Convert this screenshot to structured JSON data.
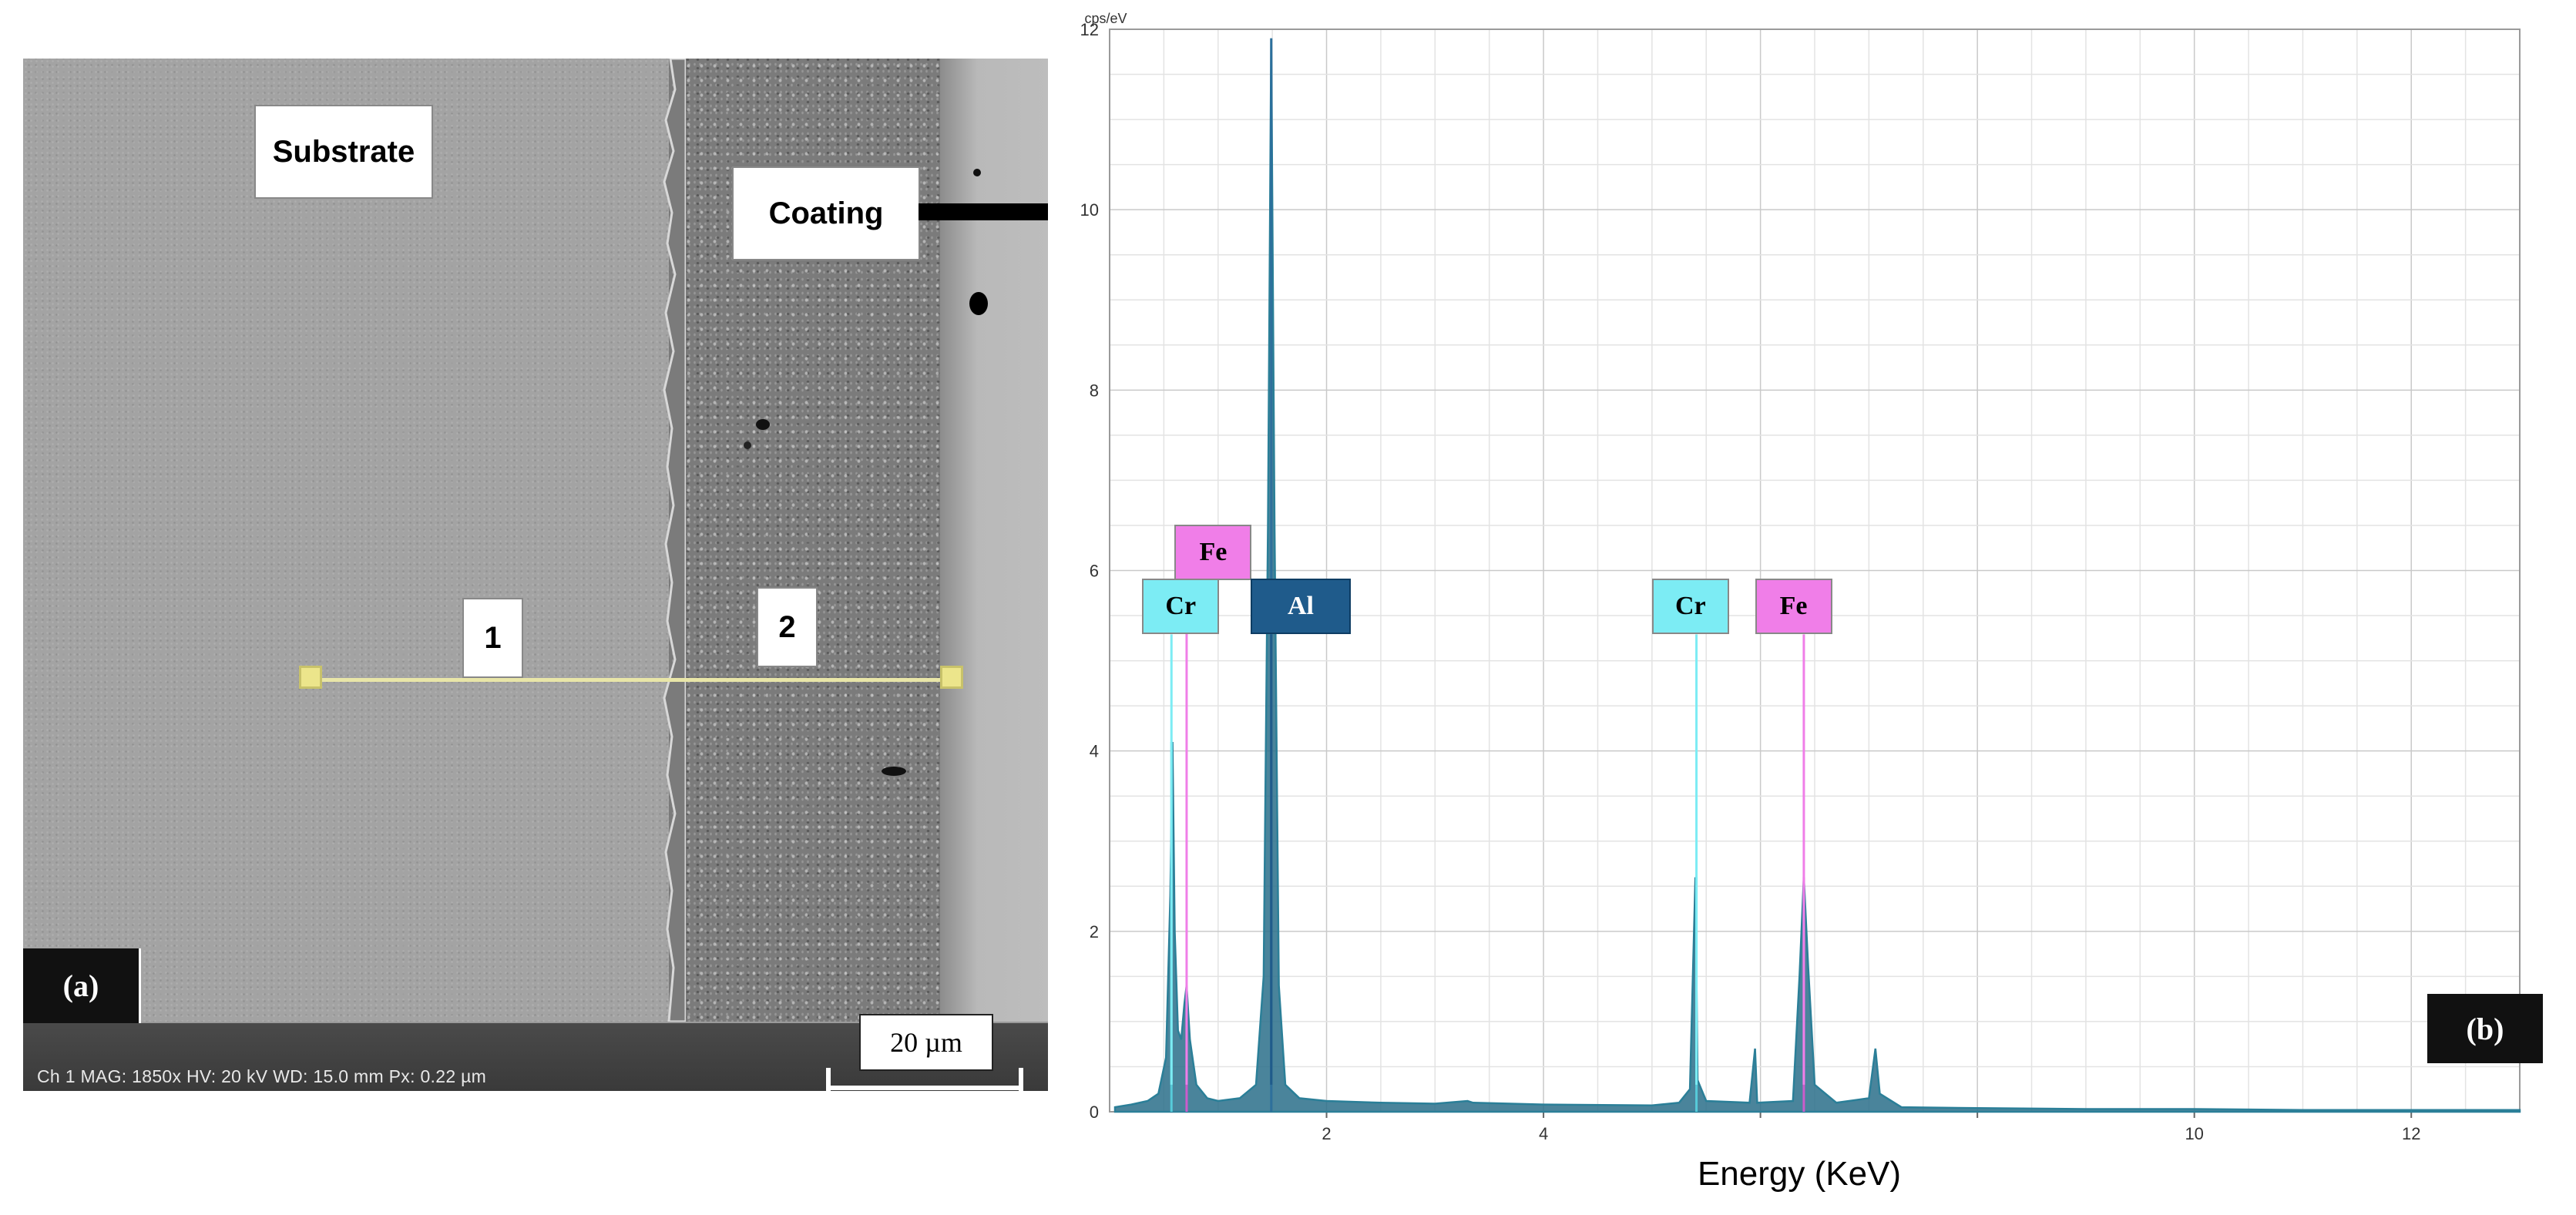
{
  "sem": {
    "substrate_label": "Substrate",
    "coating_label": "Coating",
    "point_1": "1",
    "point_2": "2",
    "panel_tag": "(a)",
    "scale_label": "20 µm",
    "info_bar": "Ch 1   MAG: 1850x   HV: 20 kV   WD: 15.0 mm   Px: 0.22 µm"
  },
  "chart_data": {
    "type": "line",
    "title": "",
    "unit_label": "cps/eV",
    "xlabel": "Energy (KeV)",
    "ylabel": "",
    "xlim": [
      0,
      13
    ],
    "ylim": [
      0,
      12
    ],
    "x_ticks": [
      2,
      4,
      6,
      8,
      10,
      12
    ],
    "x_tick_labels": [
      "2",
      "4",
      "",
      "",
      "10",
      "12"
    ],
    "y_ticks": [
      0,
      2,
      4,
      6,
      8,
      10,
      12
    ],
    "y_tick_labels": [
      "0",
      "2",
      "4",
      "6",
      "8",
      "10",
      "12"
    ],
    "grid": true,
    "panel_tag": "(b)",
    "peaks": [
      {
        "element": "Cr",
        "energy": 0.57,
        "height": 4.1,
        "color": "#58d3e0"
      },
      {
        "element": "Fe",
        "energy": 0.71,
        "height": 1.4,
        "color": "#d958d0"
      },
      {
        "element": "Al",
        "energy": 1.49,
        "height": 11.9,
        "color": "#2b6e9c"
      },
      {
        "element": "Cr",
        "energy": 5.41,
        "height": 2.6,
        "color": "#58d3e0"
      },
      {
        "element": "Fe",
        "energy": 6.4,
        "height": 2.6,
        "color": "#d958d0"
      }
    ],
    "peak_labels": [
      {
        "text": "Fe",
        "energy": 0.6,
        "y": 6.2,
        "line_to": 0.71,
        "bg": "#f07ee8",
        "fg": "#000000"
      },
      {
        "text": "Cr",
        "energy": 0.3,
        "y": 5.6,
        "line_to": 0.57,
        "bg": "#7cecf4",
        "fg": "#000000"
      },
      {
        "text": "Al",
        "energy": 1.3,
        "y": 5.6,
        "line_to": 1.49,
        "bg": "#1f5b8b",
        "fg": "#ffffff"
      },
      {
        "text": "Cr",
        "energy": 5.0,
        "y": 5.6,
        "line_to": 5.41,
        "bg": "#7cecf4",
        "fg": "#000000"
      },
      {
        "text": "Fe",
        "energy": 5.95,
        "y": 5.6,
        "line_to": 6.4,
        "bg": "#f07ee8",
        "fg": "#000000"
      }
    ],
    "spectrum": {
      "color": "#2b7f98",
      "fill": "#2a6f8a",
      "points": [
        [
          0.05,
          0.05
        ],
        [
          0.2,
          0.08
        ],
        [
          0.35,
          0.12
        ],
        [
          0.45,
          0.2
        ],
        [
          0.52,
          0.6
        ],
        [
          0.56,
          2.4
        ],
        [
          0.58,
          4.1
        ],
        [
          0.6,
          2.0
        ],
        [
          0.63,
          0.9
        ],
        [
          0.66,
          0.8
        ],
        [
          0.69,
          1.2
        ],
        [
          0.71,
          1.4
        ],
        [
          0.74,
          0.8
        ],
        [
          0.8,
          0.3
        ],
        [
          0.9,
          0.15
        ],
        [
          1.0,
          0.12
        ],
        [
          1.2,
          0.15
        ],
        [
          1.35,
          0.3
        ],
        [
          1.42,
          1.5
        ],
        [
          1.46,
          6.5
        ],
        [
          1.49,
          11.9
        ],
        [
          1.52,
          6.5
        ],
        [
          1.56,
          1.4
        ],
        [
          1.62,
          0.3
        ],
        [
          1.75,
          0.15
        ],
        [
          2.0,
          0.12
        ],
        [
          2.5,
          0.1
        ],
        [
          3.0,
          0.09
        ],
        [
          3.3,
          0.12
        ],
        [
          3.35,
          0.1
        ],
        [
          4.0,
          0.08
        ],
        [
          5.0,
          0.07
        ],
        [
          5.25,
          0.1
        ],
        [
          5.35,
          0.25
        ],
        [
          5.4,
          2.6
        ],
        [
          5.42,
          0.35
        ],
        [
          5.5,
          0.12
        ],
        [
          5.9,
          0.1
        ],
        [
          5.95,
          0.7
        ],
        [
          5.97,
          0.1
        ],
        [
          6.3,
          0.12
        ],
        [
          6.36,
          1.5
        ],
        [
          6.4,
          2.6
        ],
        [
          6.44,
          1.6
        ],
        [
          6.5,
          0.3
        ],
        [
          6.7,
          0.1
        ],
        [
          7.0,
          0.15
        ],
        [
          7.06,
          0.7
        ],
        [
          7.1,
          0.2
        ],
        [
          7.3,
          0.05
        ],
        [
          8.0,
          0.04
        ],
        [
          9.0,
          0.03
        ],
        [
          10.0,
          0.03
        ],
        [
          11.0,
          0.02
        ],
        [
          12.0,
          0.02
        ],
        [
          13.0,
          0.02
        ]
      ]
    }
  }
}
